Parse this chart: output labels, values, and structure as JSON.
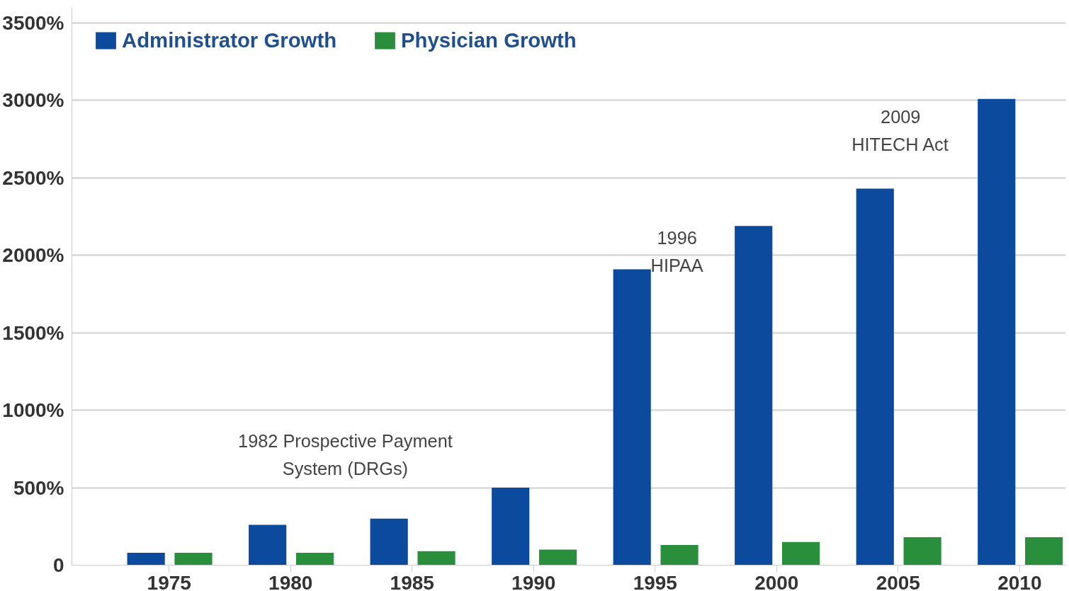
{
  "chart_data": {
    "type": "bar",
    "categories": [
      "1975",
      "1980",
      "1985",
      "1990",
      "1995",
      "2000",
      "2005",
      "2010"
    ],
    "series": [
      {
        "name": "Administrator Growth",
        "color": "#0b4a9c",
        "values": [
          80,
          260,
          300,
          500,
          1910,
          2190,
          2430,
          3010
        ]
      },
      {
        "name": "Physician Growth",
        "color": "#2a8f3c",
        "values": [
          80,
          80,
          90,
          100,
          130,
          150,
          180,
          180
        ]
      }
    ],
    "ylim": [
      0,
      3600
    ],
    "yticks": [
      0,
      {
        "value": 500,
        "label": "500%"
      },
      {
        "value": 1000,
        "label": "1000%"
      },
      {
        "value": 1500,
        "label": "1500%"
      },
      {
        "value": 2000,
        "label": "2000%"
      },
      {
        "value": 2500,
        "label": "2500%"
      },
      {
        "value": 3000,
        "label": "3000%"
      },
      {
        "value": 3500,
        "label": "3500%"
      }
    ],
    "annotations": [
      "1982 Prospective Payment\nSystem (DRGs)",
      "1996\nHIPAA",
      "2009\nHITECH Act"
    ],
    "grid": "y",
    "legend": "top left"
  }
}
